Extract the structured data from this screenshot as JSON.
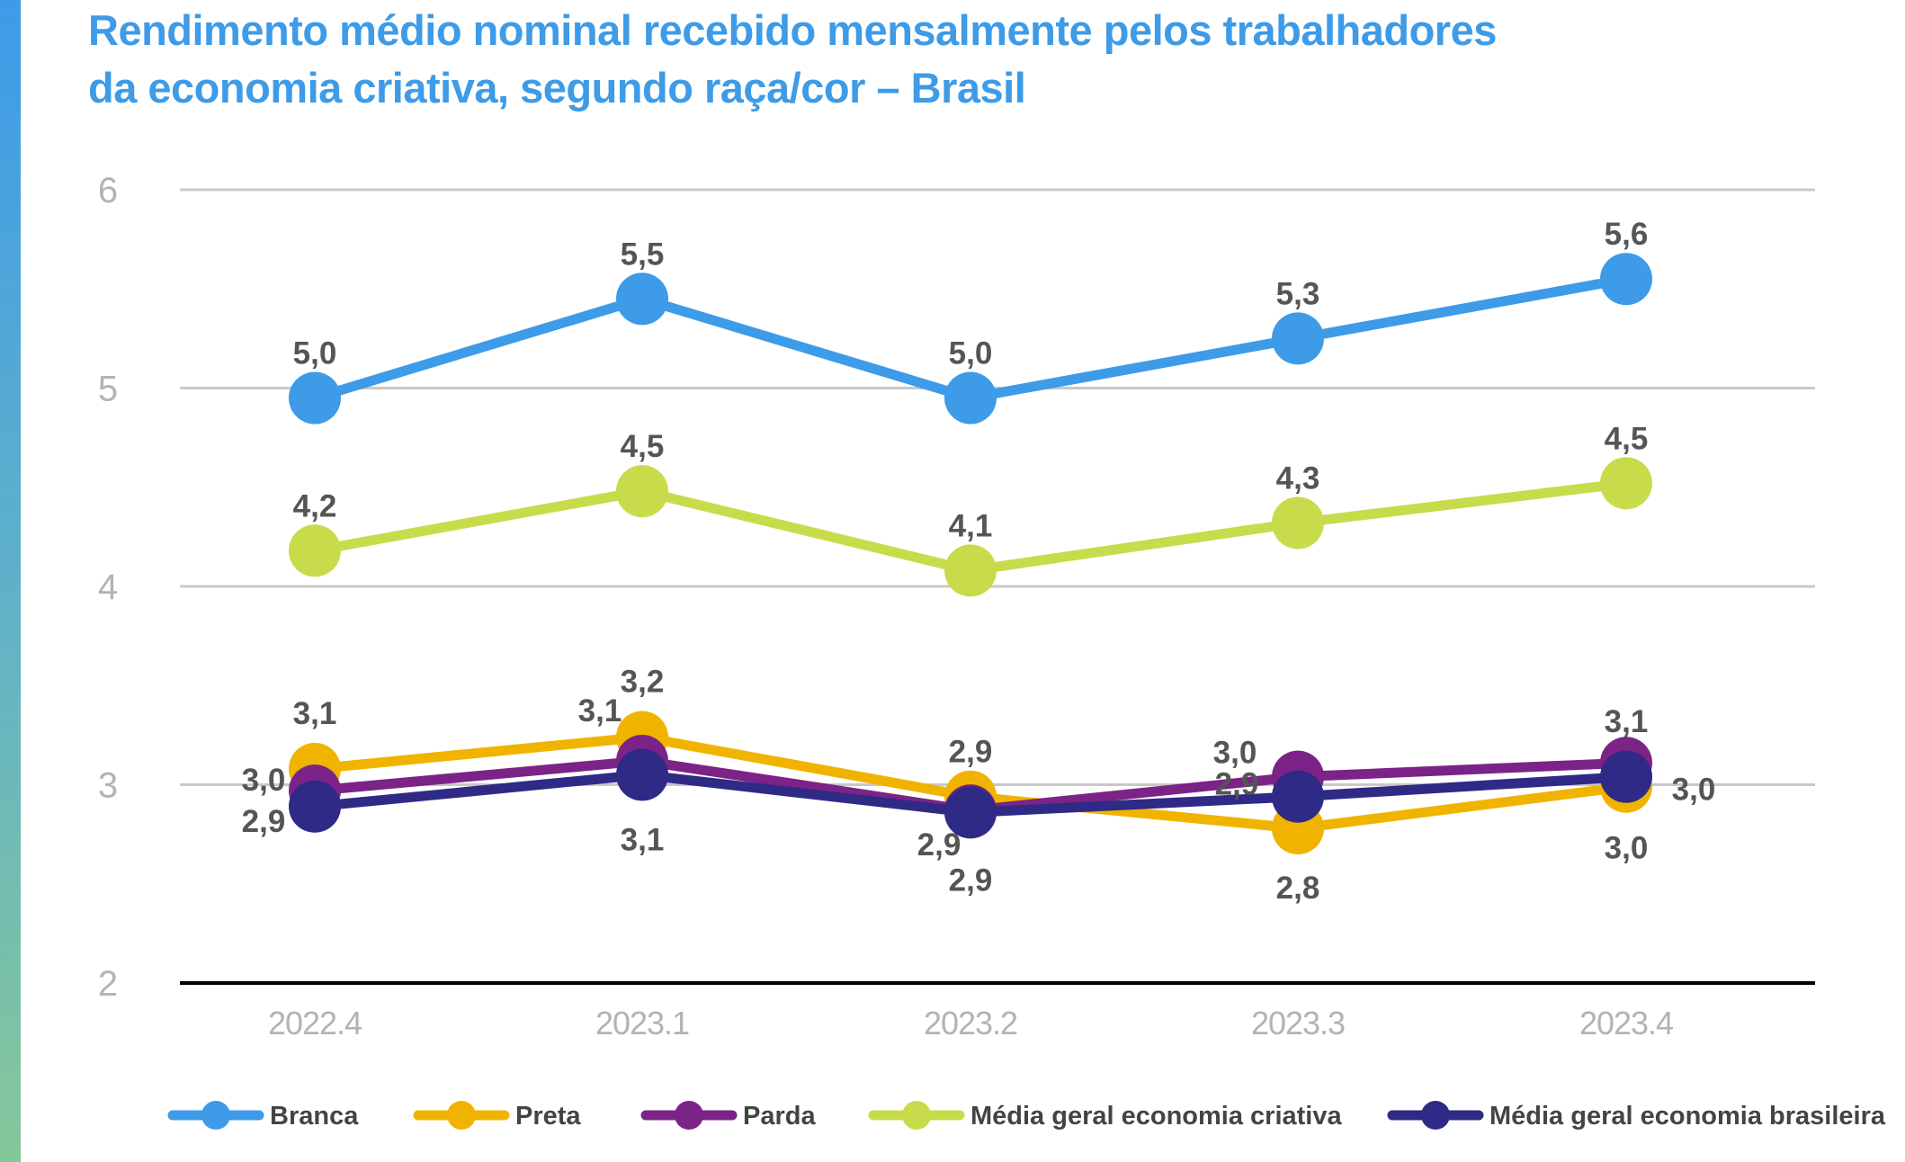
{
  "title_lines": [
    "Rendimento médio nominal recebido mensalmente pelos trabalhadores",
    "da economia criativa, segundo raça/cor – Brasil"
  ],
  "chart_data": {
    "type": "line",
    "title": "Rendimento médio nominal recebido mensalmente pelos trabalhadores da economia criativa, segundo raça/cor – Brasil",
    "categories": [
      "2022.4",
      "2023.1",
      "2023.2",
      "2023.3",
      "2023.4"
    ],
    "ylim": [
      2,
      6
    ],
    "yticks": [
      "2",
      "3",
      "4",
      "5",
      "6"
    ],
    "grid": true,
    "legend_position": "bottom",
    "series": [
      {
        "name": "Branca",
        "color": "#3d9be8",
        "values": [
          4.95,
          5.45,
          4.95,
          5.25,
          5.55
        ],
        "labels": [
          "5,0",
          "5,5",
          "5,0",
          "5,3",
          "5,6"
        ]
      },
      {
        "name": "Preta",
        "color": "#f0b400",
        "values": [
          3.08,
          3.24,
          2.94,
          2.78,
          2.99
        ],
        "labels": [
          "3,1",
          "3,2",
          "2,9",
          "2,8",
          "3,0"
        ]
      },
      {
        "name": "Parda",
        "color": "#7b2386",
        "values": [
          2.97,
          3.12,
          2.87,
          3.04,
          3.11
        ],
        "labels": [
          "3,0",
          "3,1",
          "2,9",
          "3,0",
          "3,1"
        ]
      },
      {
        "name": "Média geral economia criativa",
        "color": "#c8dc4b",
        "values": [
          4.18,
          4.48,
          4.08,
          4.32,
          4.52
        ],
        "labels": [
          "4,2",
          "4,5",
          "4,1",
          "4,3",
          "4,5"
        ]
      },
      {
        "name": "Média geral economia brasileira",
        "color": "#2f2a85",
        "values": [
          2.89,
          3.05,
          2.86,
          2.94,
          3.04
        ],
        "labels": [
          "2,9",
          "3,1",
          "2,9",
          "2,9",
          "3,0"
        ]
      }
    ]
  }
}
